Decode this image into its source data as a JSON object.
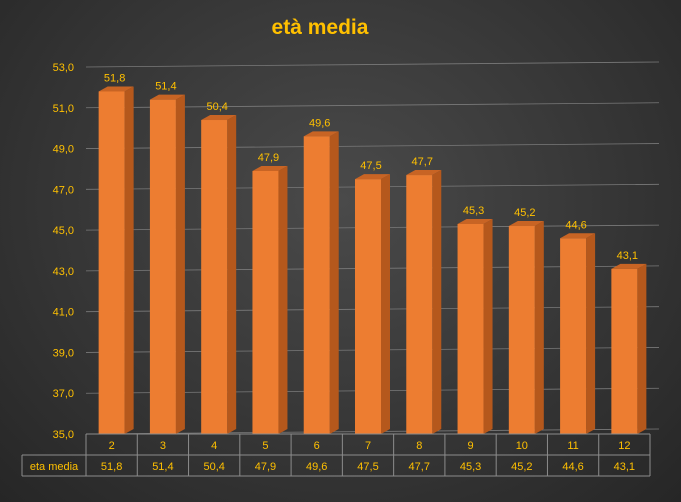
{
  "chart_data": {
    "type": "bar",
    "title": "età media",
    "categories": [
      "2",
      "3",
      "4",
      "5",
      "6",
      "7",
      "8",
      "9",
      "10",
      "11",
      "12"
    ],
    "series": [
      {
        "name": "eta media",
        "values": [
          51.8,
          51.4,
          50.4,
          47.9,
          49.6,
          47.5,
          47.7,
          45.3,
          45.2,
          44.6,
          43.1
        ],
        "value_labels": [
          "51,8",
          "51,4",
          "50,4",
          "47,9",
          "49,6",
          "47,5",
          "47,7",
          "45,3",
          "45,2",
          "44,6",
          "43,1"
        ]
      }
    ],
    "y_ticks": [
      35,
      37,
      39,
      41,
      43,
      45,
      47,
      49,
      51,
      53
    ],
    "y_tick_labels": [
      "35,0",
      "37,0",
      "39,0",
      "41,0",
      "43,0",
      "45,0",
      "47,0",
      "49,0",
      "51,0",
      "53,0"
    ],
    "ylim": [
      35,
      53
    ],
    "grid": true,
    "legend": "data table below chart",
    "colors": {
      "bar_front": "#ed7d31",
      "bar_side": "#b5581c",
      "bar_top": "#c86424",
      "text": "#ffc000",
      "grid": "#7a7a7a",
      "table_line": "#8c8c8c"
    }
  }
}
